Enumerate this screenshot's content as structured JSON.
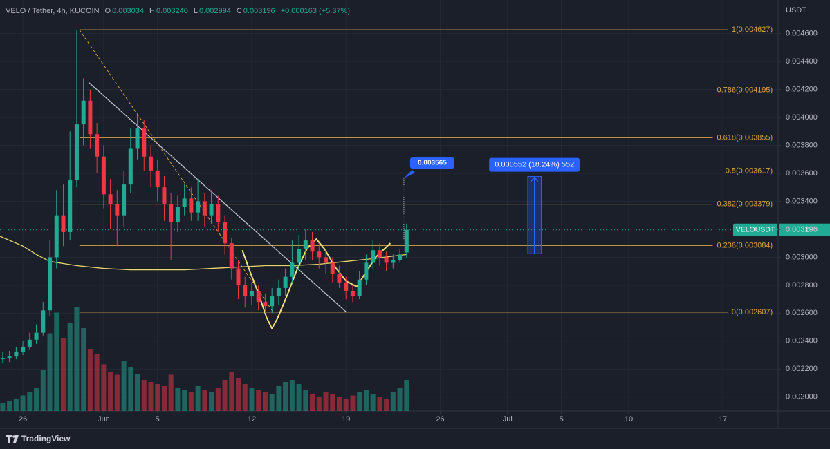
{
  "chart_data": {
    "type": "candlestick",
    "header": {
      "symbol": "VELO / Tether, 4h, KUCOIN",
      "ohlc": [
        {
          "key": "O",
          "text": "0.003034"
        },
        {
          "key": "H",
          "text": "0.003240"
        },
        {
          "key": "L",
          "text": "0.002994"
        },
        {
          "key": "C",
          "text": "0.003196"
        }
      ],
      "change": "+0.000163 (+5.37%)"
    },
    "axis_unit": "USDT",
    "brand": "TradingView",
    "up_color": "#22ab94",
    "down_color": "#f23645",
    "grid": true,
    "xlim": [
      -1.7,
      56.1
    ],
    "xticks": [
      {
        "value": 0,
        "label": "26"
      },
      {
        "value": 6,
        "label": "Jun"
      },
      {
        "value": 10,
        "label": "5"
      },
      {
        "value": 17,
        "label": "12"
      },
      {
        "value": 24,
        "label": "19"
      },
      {
        "value": 31,
        "label": "26"
      },
      {
        "value": 36,
        "label": "Jul"
      },
      {
        "value": 40,
        "label": "5"
      },
      {
        "value": 45,
        "label": "10"
      },
      {
        "value": 52,
        "label": "17"
      }
    ],
    "ylim": [
      0.0019,
      0.00484
    ],
    "yticks": [
      {
        "value": 0.002,
        "label": "0.002000"
      },
      {
        "value": 0.0022,
        "label": "0.002200"
      },
      {
        "value": 0.0024,
        "label": "0.002400"
      },
      {
        "value": 0.0026,
        "label": "0.002600"
      },
      {
        "value": 0.0028,
        "label": "0.002800"
      },
      {
        "value": 0.003,
        "label": "0.003000"
      },
      {
        "value": 0.0032,
        "label": "0.003200"
      },
      {
        "value": 0.0034,
        "label": "0.003400"
      },
      {
        "value": 0.0036,
        "label": "0.003600"
      },
      {
        "value": 0.0038,
        "label": "0.003800"
      },
      {
        "value": 0.004,
        "label": "0.004000"
      },
      {
        "value": 0.0042,
        "label": "0.004200"
      },
      {
        "value": 0.0044,
        "label": "0.004400"
      },
      {
        "value": 0.0046,
        "label": "0.004600"
      }
    ],
    "x": [
      -1.5,
      -1,
      -0.5,
      0,
      0.5,
      1,
      1.5,
      2,
      2.5,
      3,
      3.5,
      4,
      4.5,
      5,
      5.5,
      6,
      6.5,
      7,
      7.5,
      8,
      8.5,
      9,
      9.5,
      10,
      10.5,
      11,
      11.5,
      12,
      12.5,
      13,
      13.5,
      14,
      14.5,
      15,
      15.5,
      16,
      16.5,
      17,
      17.5,
      18,
      18.5,
      19,
      19.5,
      20,
      20.5,
      21,
      21.5,
      22,
      22.5,
      23,
      23.5,
      24,
      24.5,
      25,
      25.5,
      26,
      26.5,
      27,
      27.5,
      28,
      28.5
    ],
    "open": [
      0.00227,
      0.00228,
      0.00229,
      0.00232,
      0.00236,
      0.00241,
      0.00246,
      0.00262,
      0.003,
      0.0033,
      0.00318,
      0.00355,
      0.00395,
      0.00412,
      0.00388,
      0.00372,
      0.00345,
      0.00338,
      0.0033,
      0.00352,
      0.00378,
      0.00392,
      0.00372,
      0.00362,
      0.0035,
      0.00338,
      0.00325,
      0.00336,
      0.00342,
      0.00332,
      0.0034,
      0.0033,
      0.00338,
      0.00325,
      0.0031,
      0.00292,
      0.0028,
      0.00272,
      0.00276,
      0.00268,
      0.00265,
      0.00272,
      0.00278,
      0.00286,
      0.00296,
      0.00306,
      0.00312,
      0.00304,
      0.003,
      0.00296,
      0.00288,
      0.00282,
      0.00276,
      0.00272,
      0.00284,
      0.00296,
      0.00305,
      0.003,
      0.00296,
      0.00298,
      0.003034
    ],
    "high": [
      0.00232,
      0.00233,
      0.00236,
      0.0024,
      0.00246,
      0.00252,
      0.00268,
      0.00312,
      0.00348,
      0.00352,
      0.0039,
      0.004627,
      0.00428,
      0.0042,
      0.00396,
      0.0038,
      0.00356,
      0.00348,
      0.00362,
      0.00392,
      0.00402,
      0.00398,
      0.0038,
      0.0037,
      0.00358,
      0.00346,
      0.00344,
      0.00352,
      0.0035,
      0.00356,
      0.00346,
      0.00348,
      0.00344,
      0.0033,
      0.00314,
      0.00298,
      0.00286,
      0.00282,
      0.0028,
      0.00274,
      0.00278,
      0.00284,
      0.00292,
      0.00312,
      0.00316,
      0.0032,
      0.00318,
      0.0031,
      0.00306,
      0.003,
      0.00294,
      0.00286,
      0.0028,
      0.0029,
      0.00302,
      0.00312,
      0.0031,
      0.00304,
      0.00302,
      0.00306,
      0.00324
    ],
    "low": [
      0.00224,
      0.00225,
      0.00227,
      0.0023,
      0.00234,
      0.00238,
      0.00244,
      0.00258,
      0.00292,
      0.00308,
      0.00312,
      0.0035,
      0.0038,
      0.00378,
      0.0036,
      0.00335,
      0.0032,
      0.00308,
      0.00322,
      0.00346,
      0.0037,
      0.00362,
      0.0035,
      0.0034,
      0.00326,
      0.00298,
      0.00318,
      0.0033,
      0.00326,
      0.00326,
      0.00322,
      0.00324,
      0.00318,
      0.00302,
      0.00284,
      0.0027,
      0.00264,
      0.00266,
      0.00262,
      0.0026,
      0.0026,
      0.00266,
      0.00272,
      0.00282,
      0.0029,
      0.00298,
      0.00298,
      0.00292,
      0.00288,
      0.00282,
      0.00278,
      0.0027,
      0.00268,
      0.0027,
      0.0028,
      0.00292,
      0.00294,
      0.0029,
      0.00292,
      0.00296,
      0.002994
    ],
    "close": [
      0.00228,
      0.00229,
      0.00232,
      0.00236,
      0.00241,
      0.00246,
      0.00262,
      0.003,
      0.0033,
      0.00318,
      0.00355,
      0.00395,
      0.00412,
      0.00388,
      0.00372,
      0.00345,
      0.00338,
      0.0033,
      0.00352,
      0.00378,
      0.00392,
      0.00372,
      0.00362,
      0.0035,
      0.00338,
      0.00325,
      0.00336,
      0.00342,
      0.00332,
      0.0034,
      0.0033,
      0.00338,
      0.00325,
      0.0031,
      0.00292,
      0.0028,
      0.00272,
      0.00276,
      0.00268,
      0.00265,
      0.00272,
      0.00278,
      0.00286,
      0.00296,
      0.00306,
      0.00312,
      0.00304,
      0.003,
      0.00296,
      0.00288,
      0.00282,
      0.00276,
      0.00272,
      0.00284,
      0.00296,
      0.00305,
      0.003,
      0.00296,
      0.00298,
      0.00302,
      0.003196
    ],
    "volume": [
      8,
      10,
      12,
      15,
      18,
      22,
      40,
      75,
      95,
      70,
      85,
      100,
      80,
      60,
      55,
      45,
      38,
      35,
      48,
      42,
      36,
      30,
      28,
      26,
      24,
      35,
      22,
      20,
      18,
      24,
      20,
      18,
      22,
      30,
      38,
      32,
      26,
      22,
      20,
      18,
      16,
      24,
      28,
      30,
      26,
      20,
      16,
      14,
      18,
      16,
      14,
      12,
      15,
      18,
      20,
      16,
      14,
      12,
      18,
      22,
      30
    ],
    "volume_lim": [
      0,
      100
    ],
    "ma": {
      "color": "#e8d56a",
      "x": [
        -1.7,
        0,
        1,
        2,
        4,
        6,
        8,
        10,
        12,
        14,
        16,
        18,
        20,
        22,
        24,
        26,
        28.5
      ],
      "values": [
        0.00315,
        0.00308,
        0.00302,
        0.00297,
        0.00294,
        0.00292,
        0.00291,
        0.00291,
        0.00291,
        0.00292,
        0.00293,
        0.00294,
        0.00294,
        0.00295,
        0.00297,
        0.00299,
        0.00302
      ]
    },
    "last_price": {
      "name": "VELOUSDT",
      "value": 0.003196
    },
    "fib": {
      "color": "#d9a441",
      "x": [
        4.2,
        55.7
      ],
      "levels": [
        {
          "value": 0.004627,
          "label": "1(0.004627)"
        },
        {
          "value": 0.004195,
          "label": "0.786(0.004195)"
        },
        {
          "value": 0.003855,
          "label": "0.618(0.003855)"
        },
        {
          "value": 0.003617,
          "label": "0.5(0.003617)"
        },
        {
          "value": 0.003379,
          "label": "0.382(0.003379)"
        },
        {
          "value": 0.003084,
          "label": "0.236(0.003084)"
        },
        {
          "value": 0.002607,
          "label": "0(0.002607)"
        }
      ]
    },
    "drawings": {
      "trend_line": {
        "color": "#c9ccd6",
        "x": [
          4.9,
          24
        ],
        "values": [
          0.00425,
          0.00261
        ]
      },
      "fib_diagonal": {
        "color": "#d9a441",
        "x": [
          4.2,
          18.6
        ],
        "values": [
          0.004627,
          0.002607
        ]
      },
      "pattern": {
        "color": "#f1e37a",
        "x": [
          16.3,
          16.9,
          17.5,
          18.1,
          18.5,
          18.9,
          19.6,
          20.4,
          21.1,
          21.8,
          22.4,
          23.2,
          24,
          24.8,
          25.4,
          26.2,
          27.3
        ],
        "values": [
          0.00305,
          0.00289,
          0.00274,
          0.00257,
          0.00249,
          0.00256,
          0.00272,
          0.00292,
          0.00306,
          0.00313,
          0.00306,
          0.00293,
          0.00283,
          0.00279,
          0.00288,
          0.003,
          0.0031
        ]
      }
    },
    "price_callout": {
      "x": 28.3,
      "from": 0.00313,
      "value": 0.003565
    },
    "range_measure": {
      "x": [
        37.5,
        38.5
      ],
      "from": 0.003025,
      "to": 0.003577,
      "label": "0.000552 (18.24%) 552"
    }
  }
}
